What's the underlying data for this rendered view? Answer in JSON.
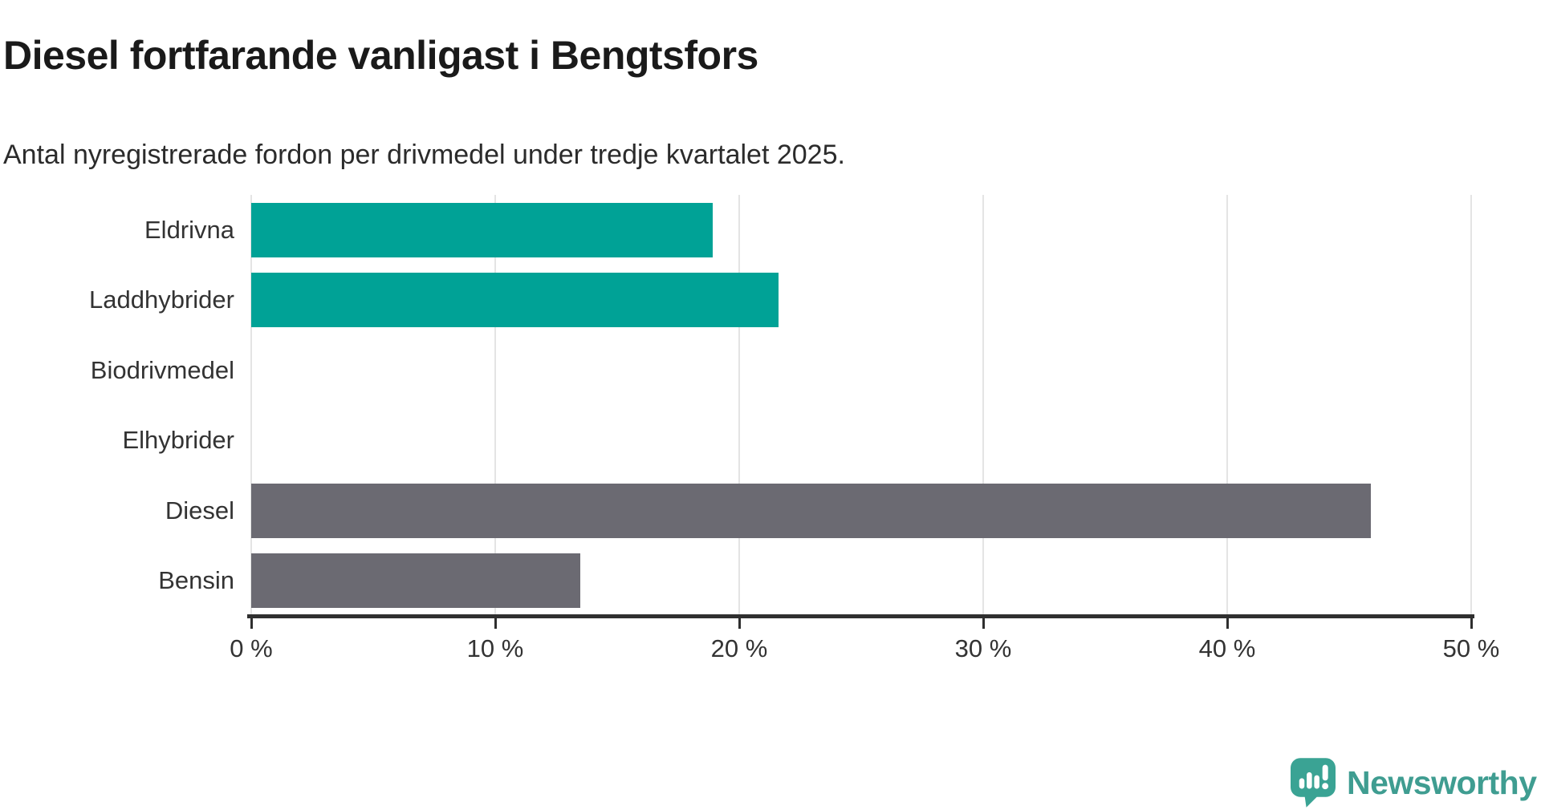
{
  "header": {
    "title": "Diesel fortfarande vanligast i Bengtsfors",
    "subtitle": "Antal nyregistrerade fordon per drivmedel under tredje kvartalet 2025."
  },
  "chart_data": {
    "type": "bar",
    "orientation": "horizontal",
    "title": "Diesel fortfarande vanligast i Bengtsfors",
    "subtitle": "Antal nyregistrerade fordon per drivmedel under tredje kvartalet 2025.",
    "categories": [
      "Eldrivna",
      "Laddhybrider",
      "Biodrivmedel",
      "Elhybrider",
      "Diesel",
      "Bensin"
    ],
    "values": [
      18.9,
      21.6,
      0,
      0,
      45.9,
      13.5
    ],
    "unit": "%",
    "bar_colors": [
      "#00A296",
      "#00A296",
      "#00A296",
      "#00A296",
      "#6B6A72",
      "#6B6A72"
    ],
    "xlabel": "",
    "ylabel": "",
    "xlim": [
      0,
      50
    ],
    "x_tick_values": [
      0,
      10,
      20,
      30,
      40,
      50
    ],
    "x_tick_labels": [
      "0 %",
      "10 %",
      "20 %",
      "30 %",
      "40 %",
      "50 %"
    ],
    "grid": "vertical-only",
    "legend": "none"
  },
  "colors": {
    "teal": "#00A296",
    "gray": "#6B6A72",
    "gridline": "#E4E4E4",
    "axis": "#2F2F2F",
    "text": "#333333",
    "title_text": "#1A1A1A",
    "logo_teal": "#3AA394",
    "logo_text_teal": "#3F9D91"
  },
  "footer": {
    "brand": "Newsworthy"
  }
}
